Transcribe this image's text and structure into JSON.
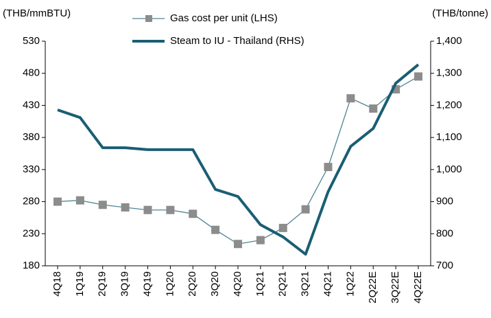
{
  "chart_data": {
    "type": "line",
    "y_label": "(THB/mmBTU)",
    "y2_label": "(THB/tonne)",
    "categories": [
      "4Q18",
      "1Q19",
      "2Q19",
      "3Q19",
      "4Q19",
      "1Q20",
      "2Q20",
      "3Q20",
      "4Q20",
      "1Q21",
      "2Q21",
      "3Q21",
      "4Q21",
      "1Q22",
      "2Q22E",
      "3Q22E",
      "4Q22E"
    ],
    "series": [
      {
        "name": "Gas cost per unit (LHS)",
        "color": "#4f8594",
        "marker_color": "#8c8c8c",
        "marker": "square",
        "values": [
          280,
          282,
          275,
          271,
          267,
          267,
          261,
          236,
          214,
          220,
          239,
          268,
          334,
          441,
          425,
          455,
          475
        ]
      },
      {
        "name": "Steam to IU - Thailand (RHS)",
        "color": "#1a5e73",
        "axis": "y2",
        "values": [
          1186,
          1162,
          1068,
          1068,
          1062,
          1062,
          1062,
          938,
          916,
          828,
          790,
          736,
          931,
          1072,
          1128,
          1269,
          1327
        ]
      }
    ],
    "ylim": [
      180,
      530
    ],
    "yticks": [
      180,
      230,
      280,
      330,
      380,
      430,
      480,
      530
    ],
    "y2lim": [
      700,
      1400
    ],
    "y2ticks": [
      700,
      800,
      900,
      {
        "value": 1000,
        "label": "1,000"
      },
      {
        "value": 1100,
        "label": "1,100"
      },
      {
        "value": 1200,
        "label": "1,200"
      },
      {
        "value": 1300,
        "label": "1,300"
      },
      {
        "value": 1400,
        "label": "1,400"
      }
    ],
    "grid": false
  }
}
